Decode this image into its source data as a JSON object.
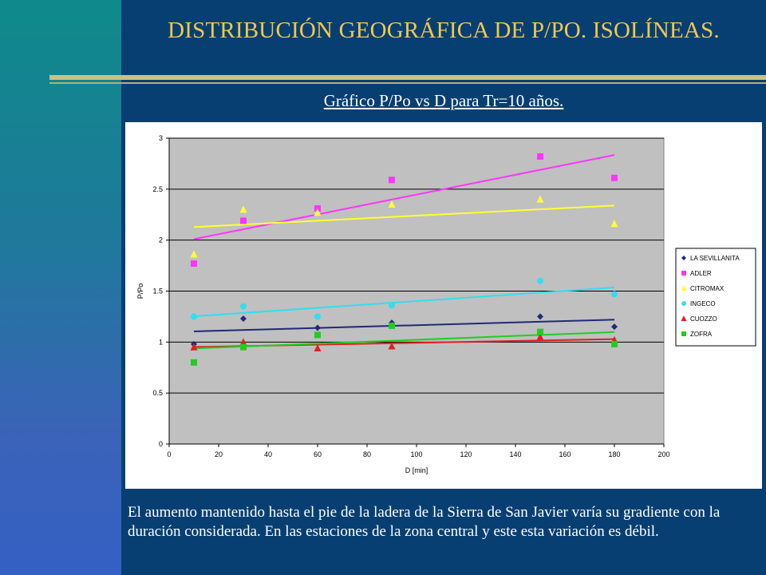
{
  "slide": {
    "title": "DISTRIBUCIÓN GEOGRÁFICA DE P/PO. ISOLÍNEAS.",
    "chart_heading": "Gráfico P/Po vs D para Tr=10 años.",
    "caption": "El aumento mantenido hasta el pie de la ladera de la Sierra de San Javier varía su gradiente con la duración considerada. En las estaciones de la zona central y este esta variación es débil.",
    "colors": {
      "background": "#083f73",
      "title": "#f2c84b",
      "plot_area": "#c0c0c0"
    }
  },
  "chart_data": {
    "type": "scatter",
    "xlabel": "D [min]",
    "ylabel": "P/Po",
    "xlim": [
      0,
      200
    ],
    "ylim": [
      0,
      3
    ],
    "xticks": [
      0,
      20,
      40,
      60,
      80,
      100,
      120,
      140,
      160,
      180,
      200
    ],
    "yticks": [
      0,
      0.5,
      1,
      1.5,
      2,
      2.5,
      3
    ],
    "grid": "horizontal",
    "legend_position": "right",
    "trendlines": "linear",
    "series": [
      {
        "name": "LA SEVILLANITA",
        "marker": "diamond",
        "color": "#1f2a7a",
        "x": [
          10,
          30,
          60,
          90,
          150,
          180
        ],
        "y": [
          0.98,
          1.23,
          1.14,
          1.19,
          1.25,
          1.15
        ]
      },
      {
        "name": "ADLER",
        "marker": "square",
        "color": "#ff33ff",
        "x": [
          10,
          30,
          60,
          90,
          150,
          180
        ],
        "y": [
          1.77,
          2.19,
          2.31,
          2.59,
          2.82,
          2.61
        ]
      },
      {
        "name": "CITROMAX",
        "marker": "triangle",
        "color": "#ffff33",
        "x": [
          10,
          30,
          60,
          90,
          150,
          180
        ],
        "y": [
          1.86,
          2.3,
          2.27,
          2.35,
          2.4,
          2.16
        ]
      },
      {
        "name": "INGECO",
        "marker": "circle",
        "color": "#33ddee",
        "x": [
          10,
          30,
          60,
          90,
          150,
          180
        ],
        "y": [
          1.25,
          1.35,
          1.25,
          1.36,
          1.6,
          1.47
        ]
      },
      {
        "name": "CUOZZO",
        "marker": "triangle",
        "color": "#e02020",
        "x": [
          10,
          30,
          60,
          90,
          150,
          180
        ],
        "y": [
          0.95,
          1.0,
          0.94,
          0.96,
          1.05,
          1.02
        ]
      },
      {
        "name": "ZOFRA",
        "marker": "square",
        "color": "#22cc22",
        "x": [
          10,
          30,
          60,
          90,
          150,
          180
        ],
        "y": [
          0.8,
          0.95,
          1.07,
          1.16,
          1.1,
          0.98
        ]
      }
    ]
  }
}
